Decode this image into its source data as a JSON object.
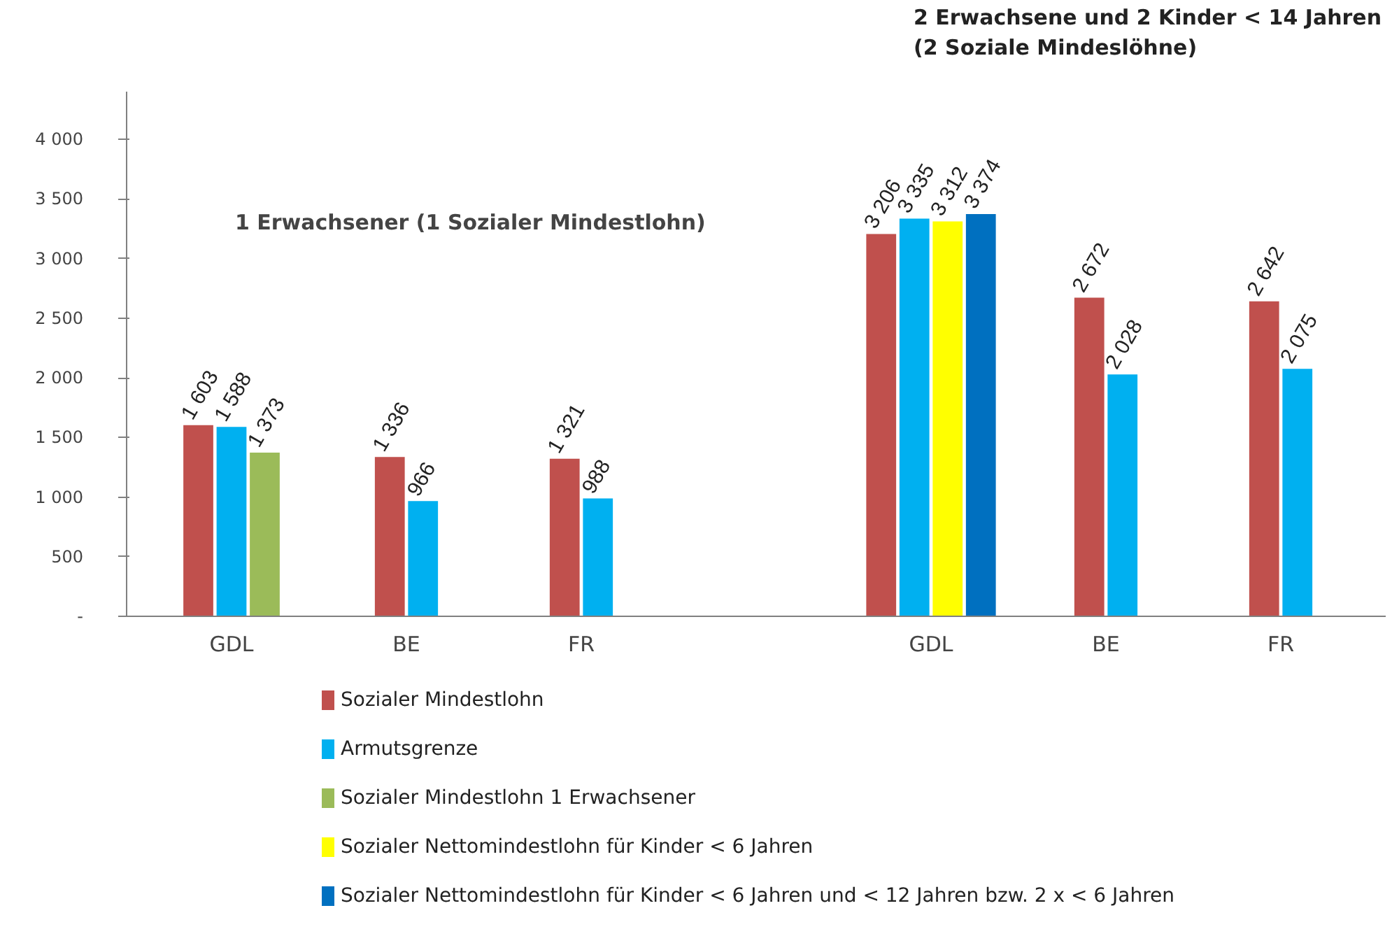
{
  "chart_data": {
    "type": "bar",
    "categories": [
      "GDL",
      "BE",
      "FR",
      null,
      "GDL",
      "BE",
      "FR"
    ],
    "series": [
      {
        "name": "Sozialer Mindestlohn",
        "color": "#c0504d",
        "values": [
          1603,
          1336,
          1321,
          null,
          3206,
          2672,
          2642
        ],
        "value_labels": [
          "1 603",
          "1 336",
          "1 321",
          null,
          "3 206",
          "2 672",
          "2 642"
        ]
      },
      {
        "name": "Armutsgrenze",
        "color": "#00b0f0",
        "values": [
          1588,
          966,
          988,
          null,
          3335,
          2028,
          2075
        ],
        "value_labels": [
          "1 588",
          "966",
          "988",
          null,
          "3 335",
          "2 028",
          "2 075"
        ]
      },
      {
        "name": "Sozialer Mindestlohn 1 Erwachsener",
        "color": "#9bbb59",
        "values": [
          1373,
          null,
          null,
          null,
          null,
          null,
          null
        ],
        "value_labels": [
          "1 373",
          null,
          null,
          null,
          null,
          null,
          null
        ]
      },
      {
        "name": "Sozialer Nettomindestlohn für Kinder < 6 Jahren",
        "color": "#ffff00",
        "values": [
          null,
          null,
          null,
          null,
          3312,
          null,
          null
        ],
        "value_labels": [
          null,
          null,
          null,
          null,
          "3 312",
          null,
          null
        ]
      },
      {
        "name": "Sozialer Nettomindestlohn für Kinder < 6 Jahren und < 12 Jahren bzw. 2 x < 6 Jahren",
        "color": "#0070c0",
        "values": [
          null,
          null,
          null,
          null,
          3374,
          null,
          null
        ],
        "value_labels": [
          null,
          null,
          null,
          null,
          "3 374",
          null,
          null
        ]
      }
    ],
    "ylim": [
      0,
      4400
    ],
    "yticks": [
      {
        "value": 0,
        "label": "-"
      },
      500,
      {
        "value": 1000,
        "label": "1 000"
      },
      {
        "value": 1500,
        "label": "1 500"
      },
      {
        "value": 2000,
        "label": "2 000"
      },
      {
        "value": 2500,
        "label": "2 500"
      },
      {
        "value": 3000,
        "label": "3 000"
      },
      {
        "value": 3500,
        "label": "3 500"
      },
      {
        "value": 4000,
        "label": "4 000"
      }
    ],
    "annotations": [
      "1 Erwachsener (1 Sozialer Mindestlohn)",
      "2 Erwachsene und 2 Kinder < 14 Jahren\n(2 Soziale Mindeslöhne)"
    ],
    "grid": false,
    "legend": "bottom"
  }
}
